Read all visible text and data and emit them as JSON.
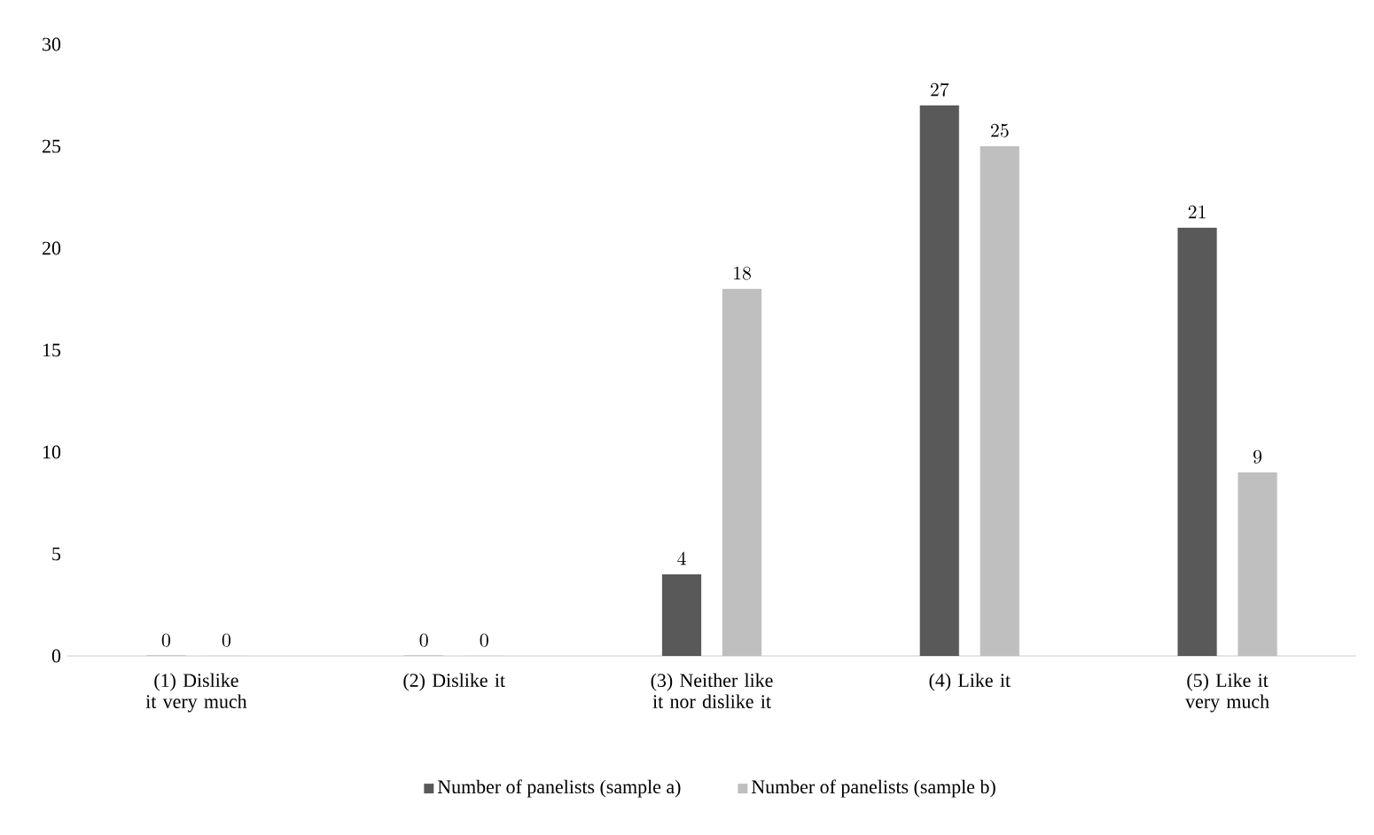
{
  "chart_data": {
    "type": "bar",
    "categories": [
      "(1) Dislike it very much",
      "(2) Dislike it",
      "(3) Neither like it nor dislike it",
      "(4) Like it",
      "(5) Like it very much"
    ],
    "series": [
      {
        "name": "Number of panelists (sample a)",
        "color": "#595959",
        "values": [
          0,
          0,
          4,
          27,
          21
        ]
      },
      {
        "name": "Number of panelists (sample b)",
        "color": "#bfbfbf",
        "values": [
          0,
          0,
          18,
          25,
          9
        ]
      }
    ],
    "ylim": [
      0,
      30
    ],
    "yticks": [
      0,
      5,
      10,
      15,
      20,
      25,
      30
    ],
    "data_labels": true,
    "legend": "bottom"
  }
}
